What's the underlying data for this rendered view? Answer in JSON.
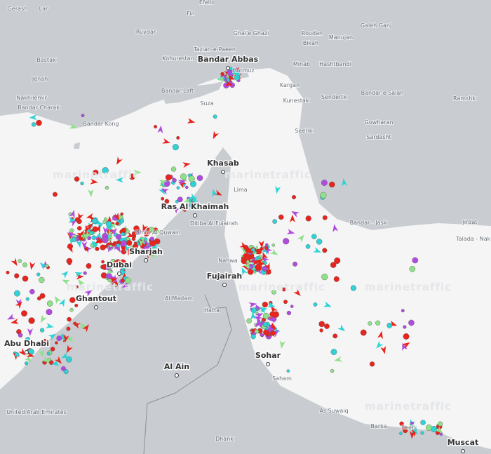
{
  "map": {
    "watermark": "marinetraffic",
    "labels": [
      "Gerash",
      "Lar",
      "Efello",
      "Fin",
      "Ruydar",
      "Ghal'e Ghazi",
      "Roudan",
      "Bikah",
      "Manujan",
      "Galeh Ganj",
      "Bastak",
      "Kohurestan",
      "Tazian-e-Paeen",
      "Bandar Abbas",
      "Hormuz",
      "Minab",
      "Hashtbandi",
      "Jenah",
      "Bandar-Laft",
      "Kargan",
      "Kunestak",
      "Nakhilemir",
      "Bandar Charak",
      "Suza",
      "Sendertk",
      "Bandar-e Salah",
      "Ramshk",
      "Bandar Kong",
      "Seerik",
      "Gowharan",
      "Sardasht",
      "Khasab",
      "Lima",
      "Ras Al Khaimah",
      "Bandar - Jask",
      "Jirdat",
      "Umm Al Quwain",
      "Sharjah",
      "Dibba Al Fujairah",
      "Dubai",
      "Nahwa",
      "Fujairah",
      "Al Madam",
      "Hatta",
      "Ghantout",
      "Abu Dhabi",
      "Sohar",
      "Saham",
      "Al Ain",
      "United Arab Emirates",
      "As Suwaiq",
      "Barka",
      "Seeb",
      "Muscat",
      "Dhank",
      "Talada - Nakhessi"
    ],
    "major": [
      13,
      31,
      33,
      37,
      39,
      41,
      44,
      45,
      46,
      48,
      53
    ]
  }
}
